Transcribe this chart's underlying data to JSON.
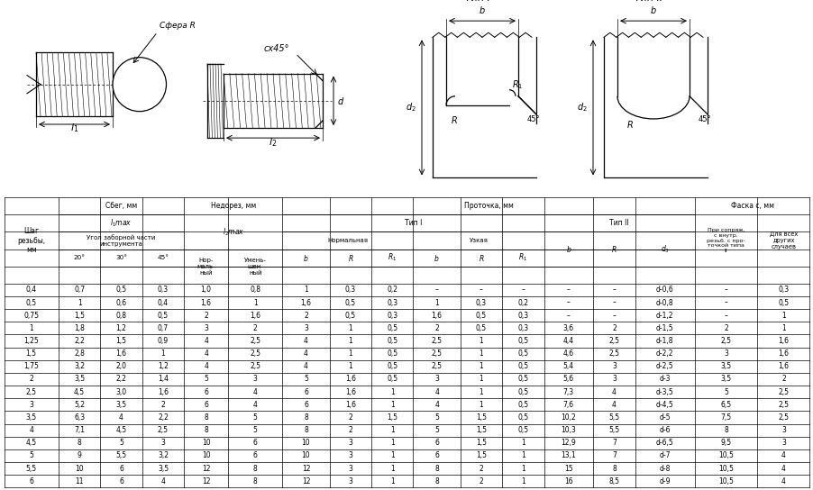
{
  "bg_color": "#ffffff",
  "data_rows": [
    [
      "0,4",
      "0,7",
      "0,5",
      "0,3",
      "1,0",
      "0,8",
      "1",
      "0,3",
      "0,2",
      "–",
      "–",
      "–",
      "–",
      "–",
      "d-0,6",
      "–",
      "0,3"
    ],
    [
      "0,5",
      "1",
      "0,6",
      "0,4",
      "1,6",
      "1",
      "1,6",
      "0,5",
      "0,3",
      "1",
      "0,3",
      "0,2",
      "–",
      "–",
      "d-0,8",
      "–",
      "0,5"
    ],
    [
      "0,75",
      "1,5",
      "0,8",
      "0,5",
      "2",
      "1,6",
      "2",
      "0,5",
      "0,3",
      "1,6",
      "0,5",
      "0,3",
      "–",
      "–",
      "d-1,2",
      "–",
      "1"
    ],
    [
      "1",
      "1,8",
      "1,2",
      "0,7",
      "3",
      "2",
      "3",
      "1",
      "0,5",
      "2",
      "0,5",
      "0,3",
      "3,6",
      "2",
      "d-1,5",
      "2",
      "1"
    ],
    [
      "1,25",
      "2,2",
      "1,5",
      "0,9",
      "4",
      "2,5",
      "4",
      "1",
      "0,5",
      "2,5",
      "1",
      "0,5",
      "4,4",
      "2,5",
      "d-1,8",
      "2,5",
      "1,6"
    ],
    [
      "1,5",
      "2,8",
      "1,6",
      "1",
      "4",
      "2,5",
      "4",
      "1",
      "0,5",
      "2,5",
      "1",
      "0,5",
      "4,6",
      "2,5",
      "d-2,2",
      "3",
      "1,6"
    ],
    [
      "1,75",
      "3,2",
      "2,0",
      "1,2",
      "4",
      "2,5",
      "4",
      "1",
      "0,5",
      "2,5",
      "1",
      "0,5",
      "5,4",
      "3",
      "d-2,5",
      "3,5",
      "1,6"
    ],
    [
      "2",
      "3,5",
      "2,2",
      "1,4",
      "5",
      "3",
      "5",
      "1,6",
      "0,5",
      "3",
      "1",
      "0,5",
      "5,6",
      "3",
      "d-3",
      "3,5",
      "2"
    ],
    [
      "2,5",
      "4,5",
      "3,0",
      "1,6",
      "6",
      "4",
      "6",
      "1,6",
      "1",
      "4",
      "1",
      "0,5",
      "7,3",
      "4",
      "d-3,5",
      "5",
      "2,5"
    ],
    [
      "3",
      "5,2",
      "3,5",
      "2",
      "6",
      "4",
      "6",
      "1,6",
      "1",
      "4",
      "1",
      "0,5",
      "7,6",
      "4",
      "d-4,5",
      "6,5",
      "2,5"
    ],
    [
      "3,5",
      "6,3",
      "4",
      "2,2",
      "8",
      "5",
      "8",
      "2",
      "1,5",
      "5",
      "1,5",
      "0,5",
      "10,2",
      "5,5",
      "d-5",
      "7,5",
      "2,5"
    ],
    [
      "4",
      "7,1",
      "4,5",
      "2,5",
      "8",
      "5",
      "8",
      "2",
      "1",
      "5",
      "1,5",
      "0,5",
      "10,3",
      "5,5",
      "d-6",
      "8",
      "3"
    ],
    [
      "4,5",
      "8",
      "5",
      "3",
      "10",
      "6",
      "10",
      "3",
      "1",
      "6",
      "1,5",
      "1",
      "12,9",
      "7",
      "d-6,5",
      "9,5",
      "3"
    ],
    [
      "5",
      "9",
      "5,5",
      "3,2",
      "10",
      "6",
      "10",
      "3",
      "1",
      "6",
      "1,5",
      "1",
      "13,1",
      "7",
      "d-7",
      "10,5",
      "4"
    ],
    [
      "5,5",
      "10",
      "6",
      "3,5",
      "12",
      "8",
      "12",
      "3",
      "1",
      "8",
      "2",
      "1",
      "15",
      "8",
      "d-8",
      "10,5",
      "4"
    ],
    [
      "6",
      "11",
      "6",
      "4",
      "12",
      "8",
      "12",
      "3",
      "1",
      "8",
      "2",
      "1",
      "16",
      "8,5",
      "d-9",
      "10,5",
      "4"
    ]
  ]
}
